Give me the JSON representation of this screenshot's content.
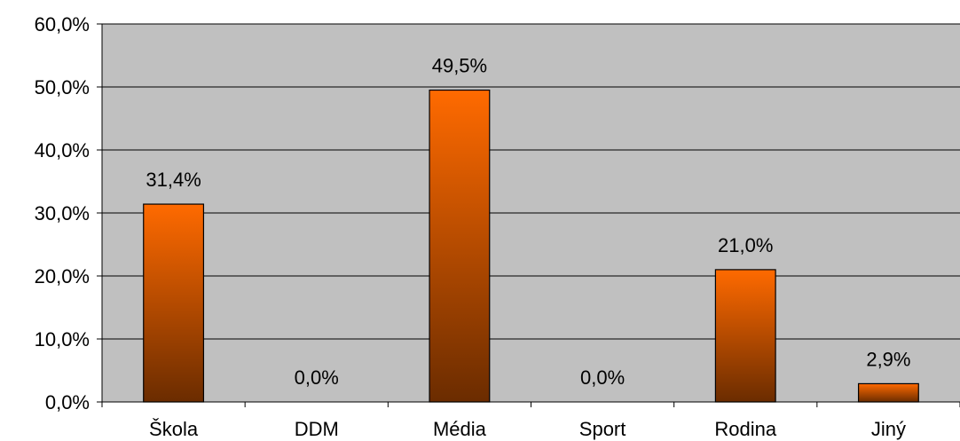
{
  "chart_data": {
    "type": "bar",
    "title": "",
    "xlabel": "",
    "ylabel": "",
    "categories": [
      "Škola",
      "DDM",
      "Média",
      "Sport",
      "Rodina",
      "Jiný"
    ],
    "values": [
      31.4,
      0.0,
      49.5,
      0.0,
      21.0,
      2.9
    ],
    "data_labels": [
      "31,4%",
      "0,0%",
      "49,5%",
      "0,0%",
      "21,0%",
      "2,9%"
    ],
    "ylim": [
      0,
      60
    ],
    "yticks": [
      0,
      10,
      20,
      30,
      40,
      50,
      60
    ],
    "ytick_labels": [
      "0,0%",
      "10,0%",
      "20,0%",
      "30,0%",
      "40,0%",
      "50,0%",
      "60,0%"
    ],
    "grid": true,
    "legend": "none",
    "colors": {
      "plot_background": "#c0c0c0",
      "bar_top": "#ff6a00",
      "bar_bottom": "#6b2c00",
      "bar_outline": "#000000",
      "gridline": "#000000"
    }
  }
}
